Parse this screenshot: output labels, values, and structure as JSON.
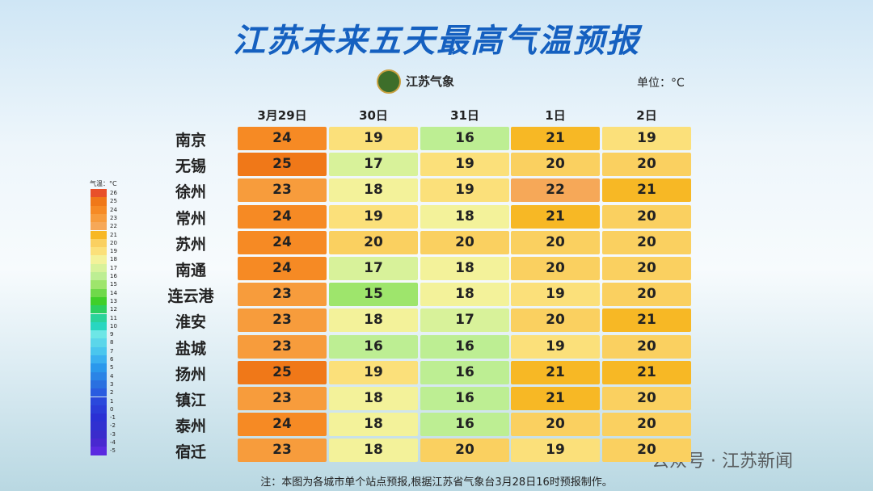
{
  "header": {
    "title": "江苏未来五天最高气温预报",
    "brand": "江苏气象",
    "unit": "单位：°C"
  },
  "table": {
    "columns": [
      "3月29日",
      "30日",
      "31日",
      "1日",
      "2日"
    ],
    "rows": [
      {
        "city": "南京",
        "values": [
          24,
          19,
          16,
          21,
          19
        ]
      },
      {
        "city": "无锡",
        "values": [
          25,
          17,
          19,
          20,
          20
        ]
      },
      {
        "city": "徐州",
        "values": [
          23,
          18,
          19,
          22,
          21
        ]
      },
      {
        "city": "常州",
        "values": [
          24,
          19,
          18,
          21,
          20
        ]
      },
      {
        "city": "苏州",
        "values": [
          24,
          20,
          20,
          20,
          20
        ]
      },
      {
        "city": "南通",
        "values": [
          24,
          17,
          18,
          20,
          20
        ]
      },
      {
        "city": "连云港",
        "values": [
          23,
          15,
          18,
          19,
          20
        ]
      },
      {
        "city": "淮安",
        "values": [
          23,
          18,
          17,
          20,
          21
        ]
      },
      {
        "city": "盐城",
        "values": [
          23,
          16,
          16,
          19,
          20
        ]
      },
      {
        "city": "扬州",
        "values": [
          25,
          19,
          16,
          21,
          21
        ]
      },
      {
        "city": "镇江",
        "values": [
          23,
          18,
          16,
          21,
          20
        ]
      },
      {
        "city": "泰州",
        "values": [
          24,
          18,
          16,
          20,
          20
        ]
      },
      {
        "city": "宿迁",
        "values": [
          23,
          18,
          20,
          19,
          20
        ]
      }
    ]
  },
  "legend": {
    "title": "气温：°C",
    "items": [
      {
        "label": "26",
        "color": "#e8502a"
      },
      {
        "label": "25",
        "color": "#f07818"
      },
      {
        "label": "24",
        "color": "#f68a24"
      },
      {
        "label": "23",
        "color": "#f79c3c"
      },
      {
        "label": "22",
        "color": "#f6a858"
      },
      {
        "label": "21",
        "color": "#f7b825"
      },
      {
        "label": "20",
        "color": "#fad060"
      },
      {
        "label": "19",
        "color": "#fbe07a"
      },
      {
        "label": "18",
        "color": "#f3f29a"
      },
      {
        "label": "17",
        "color": "#d8f29a"
      },
      {
        "label": "16",
        "color": "#bdee93"
      },
      {
        "label": "15",
        "color": "#9ee56c"
      },
      {
        "label": "14",
        "color": "#6fd94a"
      },
      {
        "label": "13",
        "color": "#3fcf2a"
      },
      {
        "label": "12",
        "color": "#2ccf60"
      },
      {
        "label": "11",
        "color": "#2ad39a"
      },
      {
        "label": "10",
        "color": "#28d6c0"
      },
      {
        "label": "9",
        "color": "#6de6e6"
      },
      {
        "label": "8",
        "color": "#5bd6ea"
      },
      {
        "label": "7",
        "color": "#4ac6ee"
      },
      {
        "label": "6",
        "color": "#3ab0f0"
      },
      {
        "label": "5",
        "color": "#2a98ec"
      },
      {
        "label": "4",
        "color": "#2a84e6"
      },
      {
        "label": "3",
        "color": "#2a70e0"
      },
      {
        "label": "2",
        "color": "#2a5ce0"
      },
      {
        "label": "1",
        "color": "#2a48dc"
      },
      {
        "label": "0",
        "color": "#2a3cd8"
      },
      {
        "label": "-1",
        "color": "#2a30d4"
      },
      {
        "label": "-2",
        "color": "#3030d0"
      },
      {
        "label": "-3",
        "color": "#3a2ccc"
      },
      {
        "label": "-4",
        "color": "#4828d0"
      },
      {
        "label": "-5",
        "color": "#5a2ae0"
      }
    ]
  },
  "footer": {
    "note": "注：本图为各城市单个站点预报,根据江苏省气象台3月28日16时预报制作。",
    "watermark": "公众号 · 江苏新闻"
  }
}
